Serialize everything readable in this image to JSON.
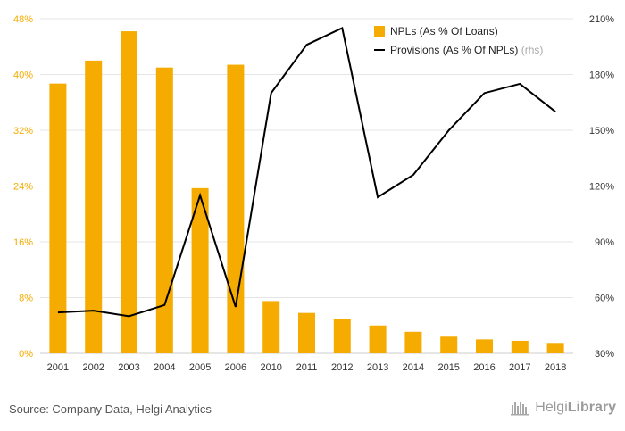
{
  "chart_data": {
    "type": "bar",
    "categories": [
      "2001",
      "2002",
      "2003",
      "2004",
      "2005",
      "2006",
      "2010",
      "2011",
      "2012",
      "2013",
      "2014",
      "2015",
      "2016",
      "2017",
      "2018"
    ],
    "series": [
      {
        "name": "NPLs (As % Of Loans)",
        "type": "bar",
        "axis": "left",
        "color": "#f5ab00",
        "values": [
          38.7,
          42.0,
          46.2,
          41.0,
          23.7,
          41.4,
          7.5,
          5.8,
          4.9,
          4.0,
          3.1,
          2.4,
          2.0,
          1.8,
          1.5
        ]
      },
      {
        "name": "Provisions (As % Of NPLs)",
        "legend_suffix": "(rhs)",
        "type": "line",
        "axis": "right",
        "color": "#000000",
        "values": [
          52,
          53,
          50,
          56,
          115,
          55,
          170,
          196,
          205,
          114,
          126,
          150,
          170,
          175,
          160
        ]
      }
    ],
    "y_left": {
      "ylim": [
        0,
        48
      ],
      "ticks": [
        "0%",
        "8%",
        "16%",
        "24%",
        "32%",
        "40%",
        "48%"
      ],
      "tick_values": [
        0,
        8,
        16,
        24,
        32,
        40,
        48
      ],
      "tick_color": "#f5ab00"
    },
    "y_right": {
      "ylim": [
        30,
        210
      ],
      "ticks": [
        "30%",
        "60%",
        "90%",
        "120%",
        "150%",
        "180%",
        "210%"
      ],
      "tick_values": [
        30,
        60,
        90,
        120,
        150,
        180,
        210
      ]
    },
    "grid": true,
    "legend_position": "top-right",
    "title": "",
    "xlabel": "",
    "ylabel": ""
  },
  "footer": {
    "source": "Source: Company Data, Helgi Analytics",
    "logo_regular": "Helgi",
    "logo_bold": "Library"
  }
}
